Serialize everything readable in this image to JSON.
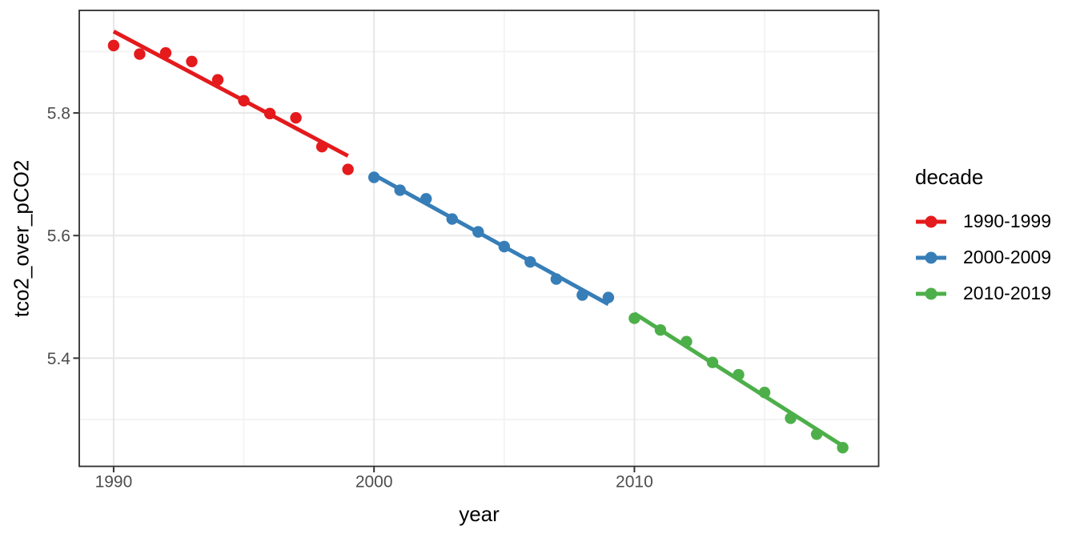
{
  "chart_data": {
    "type": "scatter",
    "title": "",
    "xlabel": "year",
    "ylabel": "tco2_over_pCO2",
    "legend_title": "decade",
    "legend_position": "right",
    "grid": "major+minor",
    "xlim": [
      1988.68,
      2019.38
    ],
    "ylim": [
      5.2235,
      5.9673
    ],
    "x_major_ticks": [
      {
        "value": 1990,
        "label": "1990"
      },
      {
        "value": 2000,
        "label": "2000"
      },
      {
        "value": 2010,
        "label": "2010"
      }
    ],
    "x_minor_ticks": [
      1995,
      2005,
      2015
    ],
    "y_major_ticks": [
      {
        "value": 5.4,
        "label": "5.4"
      },
      {
        "value": 5.6,
        "label": "5.6"
      },
      {
        "value": 5.8,
        "label": "5.8"
      }
    ],
    "y_minor_ticks": [
      5.3,
      5.5,
      5.7,
      5.9
    ],
    "series": [
      {
        "name": "1990-1999",
        "color": "#E41A1C",
        "points": {
          "x": [
            1990,
            1991,
            1992,
            1993,
            1994,
            1995,
            1996,
            1997,
            1998,
            1999
          ],
          "y": [
            5.91,
            5.896,
            5.898,
            5.884,
            5.854,
            5.82,
            5.799,
            5.792,
            5.745,
            5.708
          ]
        },
        "trend_line": {
          "x1": 1990,
          "y1": 5.933,
          "x2": 1999,
          "y2": 5.73
        }
      },
      {
        "name": "2000-2009",
        "color": "#377EB8",
        "points": {
          "x": [
            2000,
            2001,
            2002,
            2003,
            2004,
            2005,
            2006,
            2007,
            2008,
            2009
          ],
          "y": [
            5.695,
            5.674,
            5.66,
            5.627,
            5.606,
            5.582,
            5.557,
            5.529,
            5.503,
            5.499
          ]
        },
        "trend_line": {
          "x1": 2000,
          "y1": 5.699,
          "x2": 2009,
          "y2": 5.488
        }
      },
      {
        "name": "2010-2019",
        "color": "#4DAF4A",
        "points": {
          "x": [
            2010,
            2011,
            2012,
            2013,
            2014,
            2015,
            2016,
            2017,
            2018
          ],
          "y": [
            5.465,
            5.446,
            5.427,
            5.393,
            5.373,
            5.344,
            5.302,
            5.276,
            5.254
          ]
        },
        "trend_line": {
          "x1": 2010,
          "y1": 5.473,
          "x2": 2018,
          "y2": 5.257
        }
      }
    ],
    "colors": {
      "background": "#FFFFFF",
      "grid_major": "#E7E7E7",
      "grid_minor": "#F3F3F3",
      "panel_border": "#2D2D2D",
      "axis_tick": "#333333",
      "tick_label": "#4D4D4D",
      "axis_title": "#000000"
    },
    "point_radius": 7.2,
    "trend_line_width": 5
  }
}
